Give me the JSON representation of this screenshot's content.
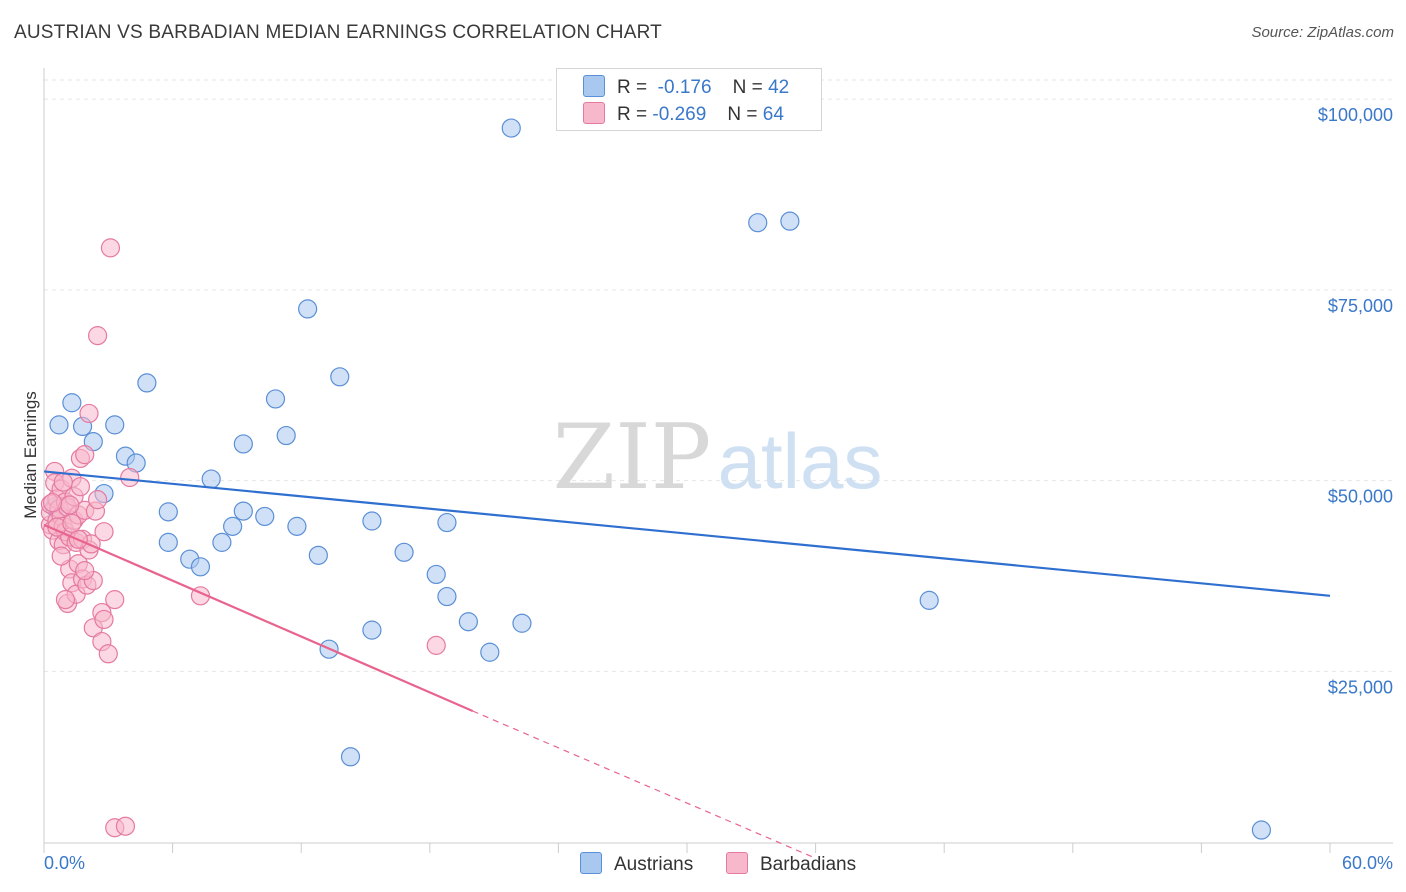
{
  "header": {
    "title": "AUSTRIAN VS BARBADIAN MEDIAN EARNINGS CORRELATION CHART",
    "source": "Source: ZipAtlas.com"
  },
  "watermark": {
    "zip": "ZIP",
    "atlas": "atlas"
  },
  "legend": {
    "rows": [
      {
        "r_label": "R =",
        "r_value": "-0.176",
        "n_label": "N =",
        "n_value": "42",
        "color": "#a9c8f0",
        "edge": "#5b8fd6"
      },
      {
        "r_label": "R =",
        "r_value": "-0.269",
        "n_label": "N =",
        "n_value": "64",
        "color": "#f7b8cc",
        "edge": "#e57aa0"
      }
    ]
  },
  "bottom_legend": {
    "austrians": "Austrians",
    "barbadians": "Barbadians"
  },
  "chart_data": {
    "type": "scatter",
    "ylabel": "Median Earnings",
    "x_tick_labels": [
      "0.0%",
      "60.0%"
    ],
    "y_tick_labels": [
      "$25,000",
      "$50,000",
      "$75,000",
      "$100,000"
    ],
    "y_ticks": [
      25000,
      50000,
      75000,
      100000
    ],
    "xlim": [
      0,
      60
    ],
    "ylim": [
      2500,
      102500
    ],
    "series": [
      {
        "name": "Austrians",
        "color": "#a9c8f0",
        "edge": "#5b8fd6",
        "line_color": "#2f6fd0",
        "trend": {
          "x0": 0,
          "y0": 51200,
          "x1": 60,
          "y1": 34900
        },
        "points": [
          [
            0.7,
            57300
          ],
          [
            1.3,
            60200
          ],
          [
            1.8,
            57100
          ],
          [
            2.3,
            55100
          ],
          [
            3.3,
            57300
          ],
          [
            2.8,
            48300
          ],
          [
            3.8,
            53200
          ],
          [
            4.3,
            52300
          ],
          [
            4.8,
            62800
          ],
          [
            5.8,
            41900
          ],
          [
            5.8,
            45900
          ],
          [
            6.8,
            39700
          ],
          [
            7.3,
            38700
          ],
          [
            7.8,
            50200
          ],
          [
            8.3,
            41900
          ],
          [
            8.8,
            44000
          ],
          [
            9.3,
            46000
          ],
          [
            9.3,
            54800
          ],
          [
            10.3,
            45300
          ],
          [
            10.8,
            60700
          ],
          [
            11.3,
            55900
          ],
          [
            11.8,
            44000
          ],
          [
            12.3,
            72500
          ],
          [
            12.8,
            40200
          ],
          [
            13.3,
            27900
          ],
          [
            13.8,
            63600
          ],
          [
            14.3,
            13800
          ],
          [
            15.3,
            30400
          ],
          [
            15.3,
            44700
          ],
          [
            16.8,
            40600
          ],
          [
            18.3,
            37700
          ],
          [
            18.8,
            44500
          ],
          [
            18.8,
            34800
          ],
          [
            19.8,
            31500
          ],
          [
            20.8,
            27500
          ],
          [
            21.8,
            96200
          ],
          [
            22.3,
            31300
          ],
          [
            33.3,
            83800
          ],
          [
            34.8,
            84000
          ],
          [
            41.3,
            34300
          ],
          [
            56.8,
            4200
          ],
          [
            0.5,
            46500
          ]
        ]
      },
      {
        "name": "Barbadians",
        "color": "#f7b8cc",
        "edge": "#e57aa0",
        "line_color": "#e8648e",
        "trend": {
          "x0": 0,
          "y0": 44200,
          "x1": 20,
          "y1": 19800
        },
        "trend_dashed": {
          "x0": 20,
          "y0": 19800,
          "x1": 36,
          "y1": 500
        },
        "points": [
          [
            0.3,
            44200
          ],
          [
            0.3,
            45800
          ],
          [
            0.3,
            46900
          ],
          [
            0.4,
            43500
          ],
          [
            0.5,
            51200
          ],
          [
            0.5,
            49700
          ],
          [
            0.6,
            47600
          ],
          [
            0.6,
            44700
          ],
          [
            0.7,
            46300
          ],
          [
            0.7,
            42100
          ],
          [
            0.8,
            48900
          ],
          [
            0.8,
            45300
          ],
          [
            0.9,
            41600
          ],
          [
            0.9,
            44000
          ],
          [
            1.0,
            47200
          ],
          [
            1.0,
            43300
          ],
          [
            1.1,
            46500
          ],
          [
            1.1,
            33900
          ],
          [
            1.2,
            38400
          ],
          [
            1.2,
            42600
          ],
          [
            1.3,
            50300
          ],
          [
            1.3,
            36600
          ],
          [
            1.4,
            47900
          ],
          [
            1.4,
            44800
          ],
          [
            1.5,
            41900
          ],
          [
            1.5,
            35100
          ],
          [
            1.6,
            39100
          ],
          [
            1.6,
            45500
          ],
          [
            1.7,
            52900
          ],
          [
            1.7,
            49200
          ],
          [
            1.8,
            42300
          ],
          [
            1.8,
            37100
          ],
          [
            1.9,
            53400
          ],
          [
            1.9,
            46100
          ],
          [
            2.0,
            36300
          ],
          [
            2.1,
            40900
          ],
          [
            2.2,
            41700
          ],
          [
            2.3,
            30700
          ],
          [
            2.3,
            36900
          ],
          [
            2.4,
            46000
          ],
          [
            2.5,
            47500
          ],
          [
            2.5,
            69000
          ],
          [
            2.7,
            32700
          ],
          [
            2.7,
            28900
          ],
          [
            2.8,
            31800
          ],
          [
            3.0,
            27300
          ],
          [
            3.1,
            80500
          ],
          [
            3.3,
            34400
          ],
          [
            3.3,
            4500
          ],
          [
            3.8,
            4700
          ],
          [
            4.0,
            50400
          ],
          [
            7.3,
            34900
          ],
          [
            18.3,
            28400
          ],
          [
            2.1,
            58800
          ],
          [
            1.2,
            46800
          ],
          [
            0.9,
            49800
          ],
          [
            0.4,
            47100
          ],
          [
            1.6,
            42300
          ],
          [
            2.8,
            43300
          ],
          [
            1.0,
            34400
          ],
          [
            0.6,
            43900
          ],
          [
            1.3,
            44400
          ],
          [
            0.8,
            40100
          ],
          [
            1.9,
            38200
          ]
        ]
      }
    ]
  }
}
